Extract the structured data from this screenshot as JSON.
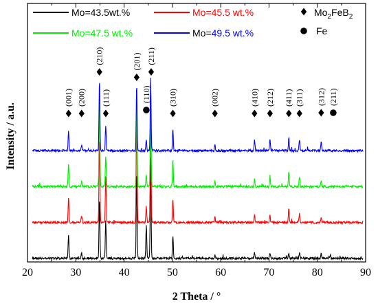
{
  "chart_data": {
    "type": "line",
    "xlabel": "2 Theta / °",
    "ylabel": "Intensity / a.u.",
    "xlim": [
      20,
      90
    ],
    "x_ticks": [
      "20",
      "30",
      "40",
      "50",
      "60",
      "70",
      "80",
      "90"
    ],
    "y_ticks_shown": false,
    "legend": {
      "placement": "top",
      "entries": [
        {
          "series": "Mo=43.5wt.%",
          "prefix": "Mo=",
          "value": "43.5wt.%",
          "color": "#000000",
          "text_color": "#000000"
        },
        {
          "series": "Mo=45.5 wt.%",
          "prefix": "Mo=",
          "value": "45.5 wt.%",
          "color": "#ff0000",
          "text_color": "#ff0000"
        },
        {
          "series": "Mo=47.5 wt.%",
          "prefix": "Mo=",
          "value": "47.5 wt.%",
          "color": "#00ee00",
          "text_color": "#00ee00"
        },
        {
          "series": "Mo=49.5 wt.%",
          "prefix": "Mo=",
          "value": "49.5 wt.%",
          "color": "#0000ff",
          "text_color": "#0000ff"
        }
      ],
      "phases": [
        {
          "marker": "diamond",
          "label_main": "Mo",
          "sub1": "2",
          "mid": "FeB",
          "sub2": "2"
        },
        {
          "marker": "circle",
          "label": "Fe"
        }
      ]
    },
    "series": [
      {
        "name": "Mo=43.5wt.%",
        "color": "#000000",
        "baseline": 2,
        "peaks": [
          [
            28.5,
            13
          ],
          [
            31.2,
            3
          ],
          [
            34.9,
            33
          ],
          [
            36.2,
            21
          ],
          [
            42.6,
            48
          ],
          [
            44.6,
            19
          ],
          [
            45.5,
            56
          ],
          [
            50.1,
            13
          ],
          [
            58.8,
            2
          ],
          [
            67.0,
            3
          ],
          [
            70.2,
            3
          ],
          [
            74.1,
            3
          ],
          [
            76.3,
            3
          ],
          [
            80.8,
            3
          ],
          [
            82.7,
            2
          ]
        ]
      },
      {
        "name": "Mo=45.5 wt.%",
        "color": "#ff0000",
        "baseline": 22,
        "peaks": [
          [
            28.5,
            14
          ],
          [
            31.2,
            4
          ],
          [
            34.9,
            48
          ],
          [
            36.2,
            26
          ],
          [
            42.6,
            58
          ],
          [
            44.6,
            9
          ],
          [
            45.5,
            62
          ],
          [
            50.1,
            13
          ],
          [
            58.8,
            3
          ],
          [
            67.0,
            4
          ],
          [
            70.2,
            4
          ],
          [
            74.1,
            8
          ],
          [
            76.3,
            5
          ],
          [
            80.8,
            3
          ]
        ]
      },
      {
        "name": "Mo=47.5 wt.%",
        "color": "#00ee00",
        "baseline": 42,
        "peaks": [
          [
            28.5,
            13
          ],
          [
            31.2,
            3
          ],
          [
            34.9,
            48
          ],
          [
            36.2,
            17
          ],
          [
            42.6,
            48
          ],
          [
            44.6,
            7
          ],
          [
            45.5,
            50
          ],
          [
            50.1,
            15
          ],
          [
            58.8,
            3
          ],
          [
            67.0,
            4
          ],
          [
            70.2,
            5
          ],
          [
            74.1,
            8
          ],
          [
            76.3,
            5
          ],
          [
            80.8,
            3
          ]
        ]
      },
      {
        "name": "Mo=49.5 wt.%",
        "color": "#0000ff",
        "baseline": 62,
        "peaks": [
          [
            28.5,
            11
          ],
          [
            31.2,
            3
          ],
          [
            34.9,
            40
          ],
          [
            36.2,
            14
          ],
          [
            42.6,
            37
          ],
          [
            44.6,
            6
          ],
          [
            45.5,
            40
          ],
          [
            50.1,
            12
          ],
          [
            58.8,
            3
          ],
          [
            67.0,
            6
          ],
          [
            70.2,
            6
          ],
          [
            74.1,
            7
          ],
          [
            76.3,
            6
          ],
          [
            80.8,
            5
          ]
        ]
      }
    ],
    "annotations": [
      {
        "hkl": "(001)",
        "x": 28.5,
        "marker": "diamond"
      },
      {
        "hkl": "(200)",
        "x": 31.2,
        "marker": "diamond"
      },
      {
        "hkl": "(210)",
        "x": 34.9,
        "marker": "diamond"
      },
      {
        "hkl": "(111)",
        "x": 36.2,
        "marker": "diamond"
      },
      {
        "hkl": "(201)",
        "x": 42.6,
        "marker": "diamond"
      },
      {
        "hkl": "(110)",
        "x": 44.6,
        "marker": "circle"
      },
      {
        "hkl": "(211)",
        "x": 45.6,
        "marker": "diamond"
      },
      {
        "hkl": "(310)",
        "x": 50.1,
        "marker": "diamond"
      },
      {
        "hkl": "(002)",
        "x": 58.8,
        "marker": "diamond"
      },
      {
        "hkl": "(410)",
        "x": 67.0,
        "marker": "diamond"
      },
      {
        "hkl": "(212)",
        "x": 70.2,
        "marker": "diamond"
      },
      {
        "hkl": "(411)",
        "x": 74.1,
        "marker": "diamond"
      },
      {
        "hkl": "(311)",
        "x": 76.3,
        "marker": "diamond"
      },
      {
        "hkl": "(312)",
        "x": 80.8,
        "marker": "diamond"
      },
      {
        "hkl": "(211)",
        "x": 83.3,
        "marker": "circle"
      }
    ]
  }
}
